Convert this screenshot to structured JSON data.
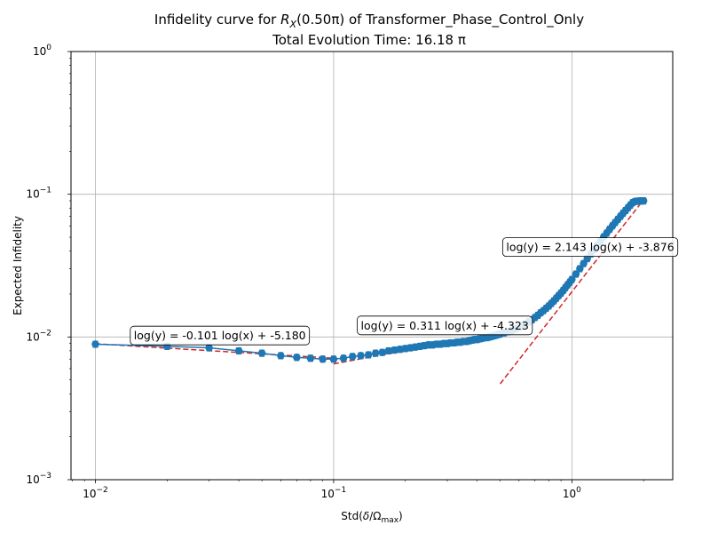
{
  "chart_data": {
    "type": "scatter",
    "title_prefix": "Infidelity curve for ",
    "title_rx_base": "R",
    "title_rx_sub": "X",
    "title_rx_arg": "(0.50π)",
    "title_suffix": " of Transformer_Phase_Control_Only",
    "subtitle": "Total Evolution Time: 16.18 π",
    "xlabel_prefix": "Std(",
    "xlabel_delta": "δ",
    "xlabel_slash": "/",
    "xlabel_omega": "Ω",
    "xlabel_sub": "max",
    "xlabel_suffix": ")",
    "ylabel": "Expected Infidelity",
    "xscale": "log",
    "yscale": "log",
    "xlim": [
      0.0079,
      2.65
    ],
    "ylim": [
      0.001,
      1
    ],
    "grid": true,
    "x_ticks": [
      {
        "value": 0.01,
        "base": "10",
        "exp": "−2"
      },
      {
        "value": 0.1,
        "base": "10",
        "exp": "−1"
      },
      {
        "value": 1,
        "base": "10",
        "exp": "0"
      }
    ],
    "y_ticks": [
      {
        "value": 0.001,
        "base": "10",
        "exp": "−3"
      },
      {
        "value": 0.01,
        "base": "10",
        "exp": "−2"
      },
      {
        "value": 0.1,
        "base": "10",
        "exp": "−1"
      },
      {
        "value": 1,
        "base": "10",
        "exp": "0"
      }
    ],
    "series": [
      {
        "marker_color": "#1f77b4",
        "x": [
          0.01,
          0.02,
          0.03,
          0.04,
          0.05,
          0.06,
          0.07,
          0.08,
          0.09,
          0.1,
          0.11,
          0.12,
          0.13,
          0.14,
          0.15,
          0.16,
          0.17,
          0.18,
          0.19,
          0.2,
          0.21,
          0.22,
          0.23,
          0.24,
          0.25,
          0.26,
          0.27,
          0.28,
          0.29,
          0.3,
          0.31,
          0.32,
          0.33,
          0.34,
          0.35,
          0.36,
          0.37,
          0.38,
          0.39,
          0.4,
          0.41,
          0.42,
          0.43,
          0.44,
          0.45,
          0.46,
          0.47,
          0.48,
          0.49,
          0.5,
          0.52,
          0.54,
          0.56,
          0.58,
          0.6,
          0.62,
          0.64,
          0.66,
          0.68,
          0.7,
          0.72,
          0.74,
          0.76,
          0.78,
          0.8,
          0.82,
          0.84,
          0.86,
          0.88,
          0.9,
          0.92,
          0.94,
          0.96,
          0.98,
          1.0,
          1.04,
          1.08,
          1.12,
          1.16,
          1.2,
          1.24,
          1.28,
          1.32,
          1.36,
          1.4,
          1.44,
          1.48,
          1.52,
          1.56,
          1.6,
          1.64,
          1.68,
          1.72,
          1.76,
          1.8,
          1.84,
          1.88,
          1.92,
          1.96,
          2.0
        ],
        "y": [
          0.0089,
          0.0086,
          0.0084,
          0.008,
          0.0077,
          0.0074,
          0.0072,
          0.0071,
          0.007,
          0.007,
          0.0071,
          0.0073,
          0.0074,
          0.0075,
          0.0077,
          0.0078,
          0.008,
          0.0081,
          0.0082,
          0.0083,
          0.0084,
          0.0085,
          0.0086,
          0.0087,
          0.0088,
          0.0088,
          0.0089,
          0.0089,
          0.009,
          0.009,
          0.0091,
          0.0091,
          0.0092,
          0.0092,
          0.0093,
          0.0093,
          0.0094,
          0.0095,
          0.0096,
          0.0096,
          0.0097,
          0.0098,
          0.0099,
          0.0099,
          0.01,
          0.0101,
          0.0102,
          0.0103,
          0.0104,
          0.0105,
          0.0107,
          0.0109,
          0.0111,
          0.0114,
          0.0117,
          0.012,
          0.0124,
          0.0128,
          0.0132,
          0.0137,
          0.0142,
          0.0148,
          0.0153,
          0.0159,
          0.0165,
          0.0172,
          0.0179,
          0.0187,
          0.0195,
          0.0203,
          0.0212,
          0.0222,
          0.0232,
          0.0242,
          0.0253,
          0.0276,
          0.0301,
          0.0327,
          0.0354,
          0.0382,
          0.0411,
          0.0441,
          0.0471,
          0.0503,
          0.0535,
          0.0568,
          0.0601,
          0.0634,
          0.0668,
          0.0702,
          0.0736,
          0.077,
          0.0805,
          0.084,
          0.0874,
          0.089,
          0.0895,
          0.0897,
          0.0898,
          0.0899
        ]
      }
    ],
    "fits": [
      {
        "label": "log(y) = -0.101 log(x) + -5.180",
        "x_range": [
          0.01,
          0.1
        ],
        "slope": -0.101,
        "intercept": -5.18,
        "color": "#d62728"
      },
      {
        "label": "log(y) = 0.311 log(x) + -4.323",
        "x_range": [
          0.1,
          0.5
        ],
        "slope": 0.311,
        "intercept": -4.323,
        "color": "#d62728"
      },
      {
        "label": "log(y) = 2.143 log(x) + -3.876",
        "x_range": [
          0.5,
          2.0
        ],
        "slope": 2.143,
        "intercept": -3.876,
        "color": "#d62728"
      }
    ]
  }
}
